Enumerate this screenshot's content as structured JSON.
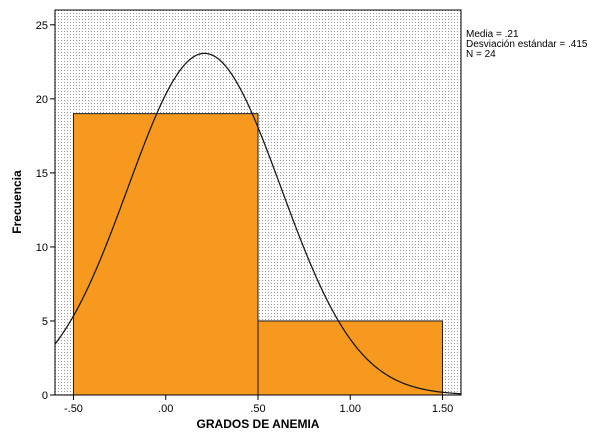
{
  "chart_data": {
    "type": "bar",
    "subtype": "histogram",
    "xlabel": "GRADOS DE ANEMIA",
    "ylabel": "Frecuencia",
    "xlim": [
      -0.6,
      1.6
    ],
    "ylim": [
      0,
      26
    ],
    "x_ticks": [
      -0.5,
      0.0,
      0.5,
      1.0,
      1.5
    ],
    "x_tick_labels": [
      "-.50",
      ".00",
      ".50",
      "1.00",
      "1.50"
    ],
    "y_ticks": [
      0,
      5,
      10,
      15,
      20,
      25
    ],
    "y_tick_labels": [
      "0",
      "5",
      "10",
      "15",
      "20",
      "25"
    ],
    "bins": [
      {
        "start": -0.5,
        "end": 0.5,
        "count": 19
      },
      {
        "start": 0.5,
        "end": 1.5,
        "count": 5
      }
    ],
    "normal_curve": {
      "mean": 0.21,
      "std": 0.415,
      "n": 24,
      "bin_width": 1.0
    },
    "bar_color": "#f7991f",
    "plot_background": "#ffffff",
    "dot_pattern": true,
    "legend_placement": "top-right",
    "stats_text": [
      "Media = .21",
      "Desviación estándar = .415",
      "N = 24"
    ]
  }
}
